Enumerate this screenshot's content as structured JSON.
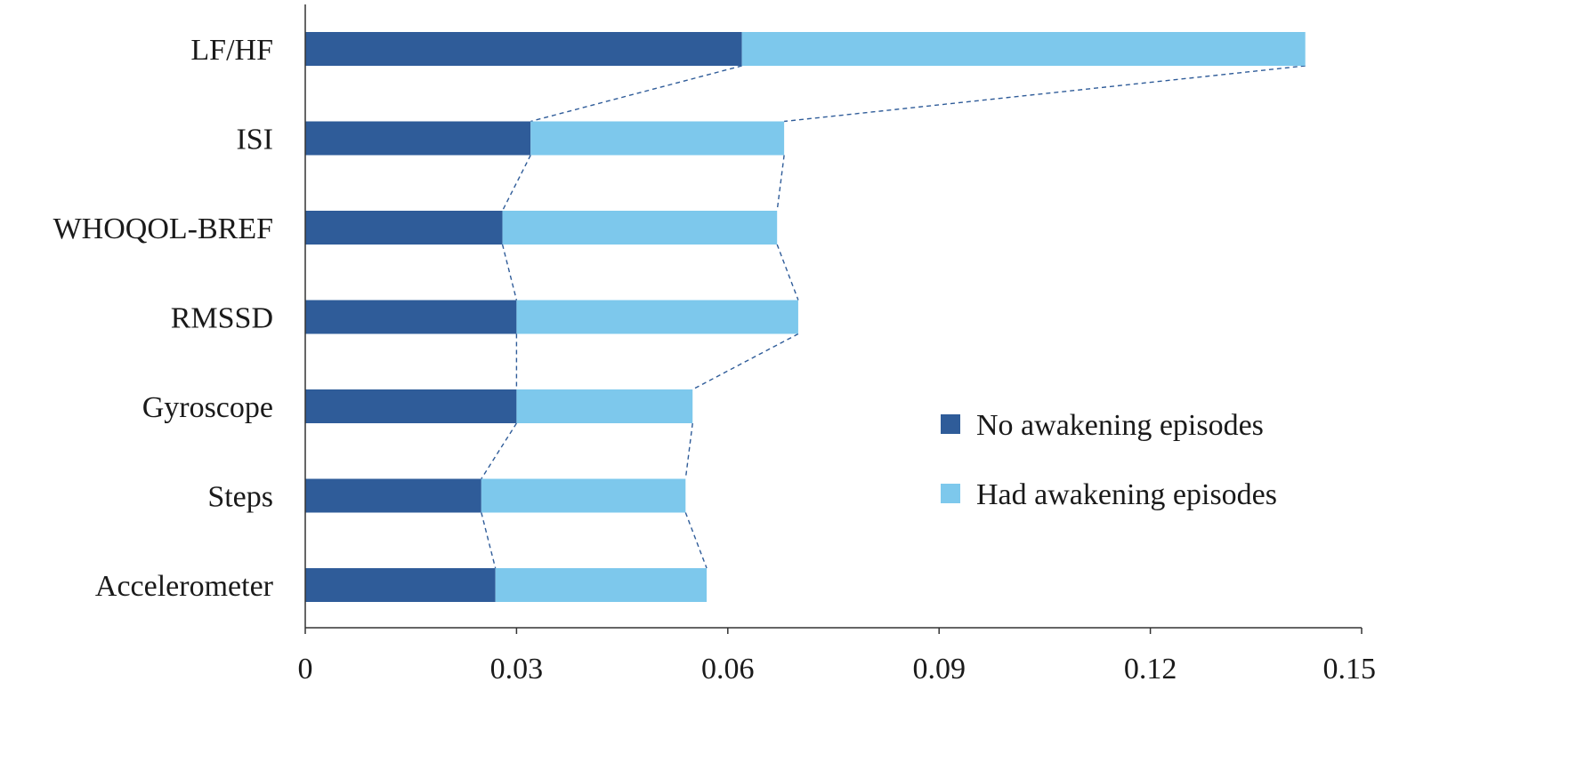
{
  "chart_data": {
    "type": "bar",
    "orientation": "horizontal",
    "stacked": true,
    "title": "",
    "xlabel": "",
    "ylabel": "",
    "categories": [
      "LF/HF",
      "ISI",
      "WHOQOL-BREF",
      "RMSSD",
      "Gyroscope",
      "Steps",
      "Accelerometer"
    ],
    "series": [
      {
        "name": "No awakening episodes",
        "color": "#2f5c99",
        "values": [
          0.062,
          0.032,
          0.028,
          0.03,
          0.03,
          0.025,
          0.027
        ]
      },
      {
        "name": "Had awakening episodes",
        "color": "#7dc8ec",
        "values": [
          0.08,
          0.036,
          0.039,
          0.04,
          0.025,
          0.029,
          0.03
        ]
      }
    ],
    "xlim": [
      0,
      0.15
    ],
    "x_ticks": [
      "0",
      "0.03",
      "0.06",
      "0.09",
      "0.12",
      "0.15"
    ],
    "x_tick_values": [
      0,
      0.03,
      0.06,
      0.09,
      0.12,
      0.15
    ],
    "grid": false,
    "legend_position": "bottom-right",
    "connector_lines": "dashed",
    "connector_color": "#2f5c99"
  }
}
